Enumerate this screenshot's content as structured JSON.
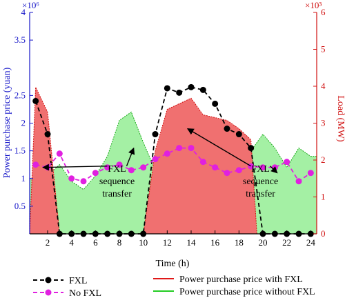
{
  "chart_data": {
    "type": "line",
    "xlabel": "Time (h)",
    "ylabel_left": "Power purchase price (yuan)",
    "ylabel_right": "Load (MW)",
    "left_exponent": "×10⁶",
    "right_exponent": "×10³",
    "left_color": "#1515c8",
    "right_color": "#d01010",
    "x": [
      1,
      2,
      3,
      4,
      5,
      6,
      7,
      8,
      9,
      10,
      11,
      12,
      13,
      14,
      15,
      16,
      17,
      18,
      19,
      20,
      21,
      22,
      23,
      24
    ],
    "xticks": [
      "2",
      "4",
      "6",
      "8",
      "10",
      "12",
      "14",
      "16",
      "18",
      "20",
      "22",
      "24"
    ],
    "xtick_values": [
      2,
      4,
      6,
      8,
      10,
      12,
      14,
      16,
      18,
      20,
      22,
      24
    ],
    "xlim": [
      0.5,
      24.5
    ],
    "ylim_left": [
      0,
      4
    ],
    "yticks_left": [
      {
        "v": 0.5,
        "label": "0.5"
      },
      {
        "v": 1,
        "label": "1"
      },
      {
        "v": 1.5,
        "label": "1.5"
      },
      {
        "v": 2,
        "label": "2"
      },
      {
        "v": 2.5,
        "label": "2.5"
      },
      {
        "v": 3.5,
        "label": "3.5"
      },
      {
        "v": 4,
        "label": "4"
      }
    ],
    "ylim_right": [
      0,
      6
    ],
    "yticks_right": [
      {
        "v": 0,
        "label": "0"
      },
      {
        "v": 1,
        "label": "1"
      },
      {
        "v": 2,
        "label": "2"
      },
      {
        "v": 3,
        "label": "3"
      },
      {
        "v": 4,
        "label": "4"
      },
      {
        "v": 5,
        "label": "5"
      },
      {
        "v": 6,
        "label": "6"
      }
    ],
    "area_series": [
      {
        "name": "Power purchase price with FXL",
        "color": "#f07070",
        "edge": "#d01010",
        "x": [
          0.5,
          1,
          2,
          3,
          4,
          5,
          6,
          7,
          8,
          9,
          10,
          11,
          12,
          13,
          14,
          15,
          16,
          17,
          18,
          19,
          19.5,
          20,
          21,
          22,
          23,
          24,
          24.5
        ],
        "values": [
          0,
          2.65,
          2.2,
          0,
          0,
          0,
          0,
          0,
          0,
          0,
          0,
          1.5,
          2.25,
          2.35,
          2.45,
          2.15,
          2.1,
          2.05,
          1.9,
          1.7,
          0,
          0,
          0,
          0,
          0,
          0,
          0
        ]
      },
      {
        "name": "Power purchase price without FXL",
        "color": "#a4f0a4",
        "edge": "#18a818",
        "x": [
          0.5,
          1,
          2,
          3,
          4,
          5,
          6,
          7,
          8,
          9,
          10,
          11,
          12,
          13,
          14,
          15,
          16,
          17,
          18,
          19,
          20,
          21,
          22,
          23,
          24,
          24.5
        ],
        "values": [
          1.0,
          1.0,
          1.05,
          1.25,
          0.95,
          0.8,
          1.05,
          1.4,
          2.05,
          2.2,
          1.65,
          1.15,
          0.9,
          0.9,
          0.88,
          0.93,
          1.0,
          1.15,
          1.35,
          1.5,
          1.8,
          1.55,
          1.2,
          1.55,
          1.4,
          1.4
        ]
      }
    ],
    "line_series": [
      {
        "name": "FXL",
        "color": "#000000",
        "dashed": true,
        "values": [
          2.4,
          1.8,
          0,
          0,
          0,
          0,
          0,
          0,
          0,
          0,
          1.8,
          2.63,
          2.55,
          2.65,
          2.6,
          2.35,
          1.9,
          1.8,
          1.55,
          0,
          0,
          0,
          0,
          0
        ]
      },
      {
        "name": "No FXL",
        "color": "#e020e0",
        "dashed": true,
        "values": [
          1.25,
          1.2,
          1.45,
          1.0,
          0.95,
          1.1,
          1.2,
          1.25,
          1.15,
          1.2,
          1.35,
          1.45,
          1.55,
          1.55,
          1.3,
          1.2,
          1.1,
          1.15,
          1.22,
          1.2,
          1.2,
          1.3,
          0.95,
          1.1
        ]
      }
    ],
    "annotations": [
      {
        "text": [
          "FXL",
          "sequence",
          "transfer"
        ],
        "anchor": [
          7.8,
          0.95
        ],
        "arrows": [
          [
            1.6,
            1.2
          ],
          [
            9.2,
            1.55
          ]
        ]
      },
      {
        "text": [
          "FXL",
          "sequence",
          "transfer"
        ],
        "anchor": [
          19.8,
          0.95
        ],
        "arrows": [
          [
            13.7,
            1.9
          ],
          [
            21.2,
            1.1
          ]
        ]
      }
    ],
    "legend": [
      {
        "label": "FXL"
      },
      {
        "label": "No FXL"
      },
      {
        "label": "Power purchase price with FXL"
      },
      {
        "label": "Power purchase price without FXL"
      }
    ]
  }
}
